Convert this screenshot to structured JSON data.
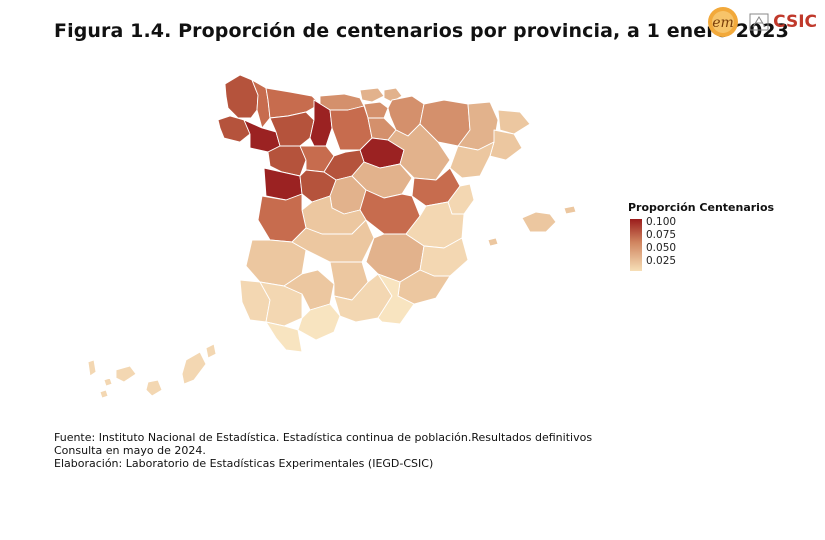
{
  "title": "Figura 1.4. Proporción de centenarios por provincia, a 1 enero 2023",
  "logos": {
    "left": "em-logo",
    "right_text": "CSIC"
  },
  "legend": {
    "title": "Proporción Centenarios",
    "ticks": [
      "0.100",
      "0.075",
      "0.050",
      "0.025"
    ],
    "color_low": "#f6dfb7",
    "color_high": "#9b1c1c"
  },
  "notes": [
    "Fuente: Instituto Nacional de Estadística. Estadística continua de población.Resultados definitivos",
    "Consulta en mayo de 2024.",
    "Elaboración: Laboratorio de Estadísticas Experimentales (IEGD-CSIC)"
  ],
  "colors": {
    "c1": "#9b2222",
    "c2": "#b5533c",
    "c3": "#c76c4e",
    "c4": "#d4906c",
    "c5": "#e2b28c",
    "c6": "#ecc7a0",
    "c7": "#f3d7b2",
    "c8": "#f8e4c0",
    "border": "#ffffff"
  }
}
